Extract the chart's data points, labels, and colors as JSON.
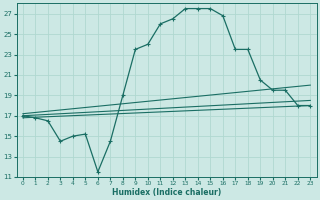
{
  "xlabel": "Humidex (Indice chaleur)",
  "bg_color": "#cce8e4",
  "line_color": "#1a6e64",
  "grid_color": "#b0d8d0",
  "xlim": [
    -0.5,
    23.5
  ],
  "ylim": [
    11,
    28
  ],
  "yticks": [
    11,
    13,
    15,
    17,
    19,
    21,
    23,
    25,
    27
  ],
  "xticks": [
    0,
    1,
    2,
    3,
    4,
    5,
    6,
    7,
    8,
    9,
    10,
    11,
    12,
    13,
    14,
    15,
    16,
    17,
    18,
    19,
    20,
    21,
    22,
    23
  ],
  "series1_x": [
    0,
    1,
    2,
    3,
    4,
    5,
    6,
    7,
    8,
    9,
    10,
    11,
    12,
    13,
    14,
    15,
    16,
    17,
    18,
    19,
    20,
    21,
    22,
    23
  ],
  "series1_y": [
    17.0,
    16.8,
    16.5,
    14.5,
    15.0,
    15.2,
    11.5,
    14.5,
    19.0,
    23.5,
    24.0,
    26.0,
    26.5,
    27.5,
    27.5,
    27.5,
    26.8,
    23.5,
    23.5,
    20.5,
    19.5,
    19.5,
    18.0,
    18.0
  ],
  "series2_x": [
    0,
    23
  ],
  "series2_y": [
    17.2,
    20.0
  ],
  "series3_x": [
    0,
    23
  ],
  "series3_y": [
    17.0,
    18.5
  ],
  "series4_x": [
    0,
    23
  ],
  "series4_y": [
    16.8,
    18.0
  ]
}
